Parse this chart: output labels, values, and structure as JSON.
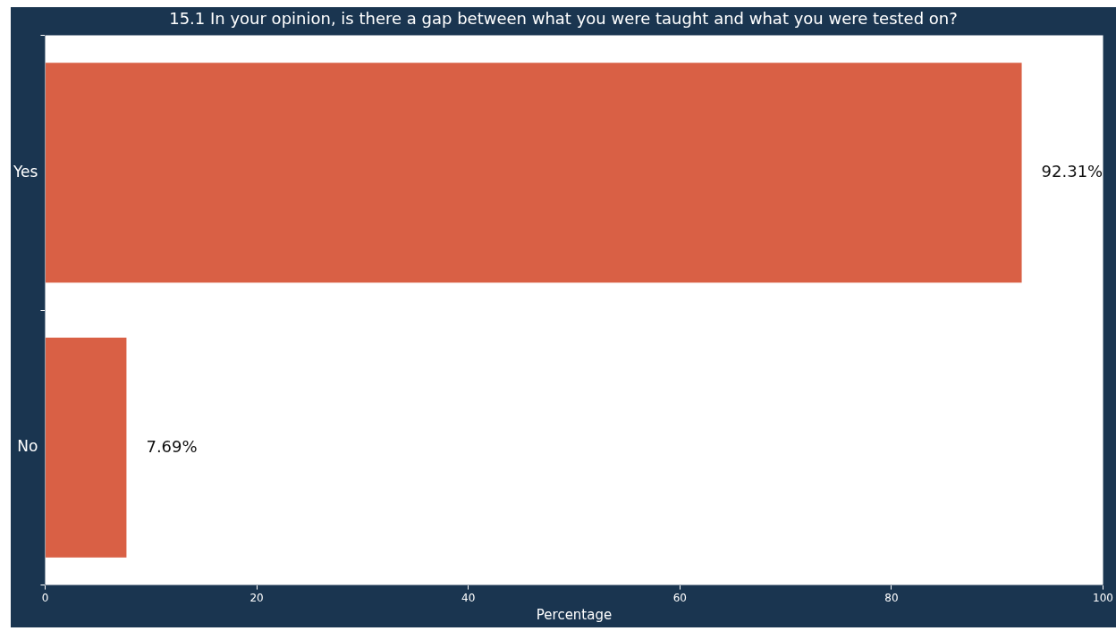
{
  "chart_data": {
    "type": "bar",
    "orientation": "horizontal",
    "title": "15.1 In your opinion, is there a gap between what you were taught and what you were tested on?",
    "xlabel": "Percentage",
    "categories": [
      "Yes",
      "No"
    ],
    "values": [
      92.31,
      7.69
    ],
    "color": "#d96045",
    "value_labels": [
      "92.31%",
      "7.69%"
    ],
    "xlim": [
      0,
      100
    ],
    "xticks": [
      0,
      20,
      40,
      60,
      80,
      100
    ],
    "grid": false,
    "legend": false
  }
}
